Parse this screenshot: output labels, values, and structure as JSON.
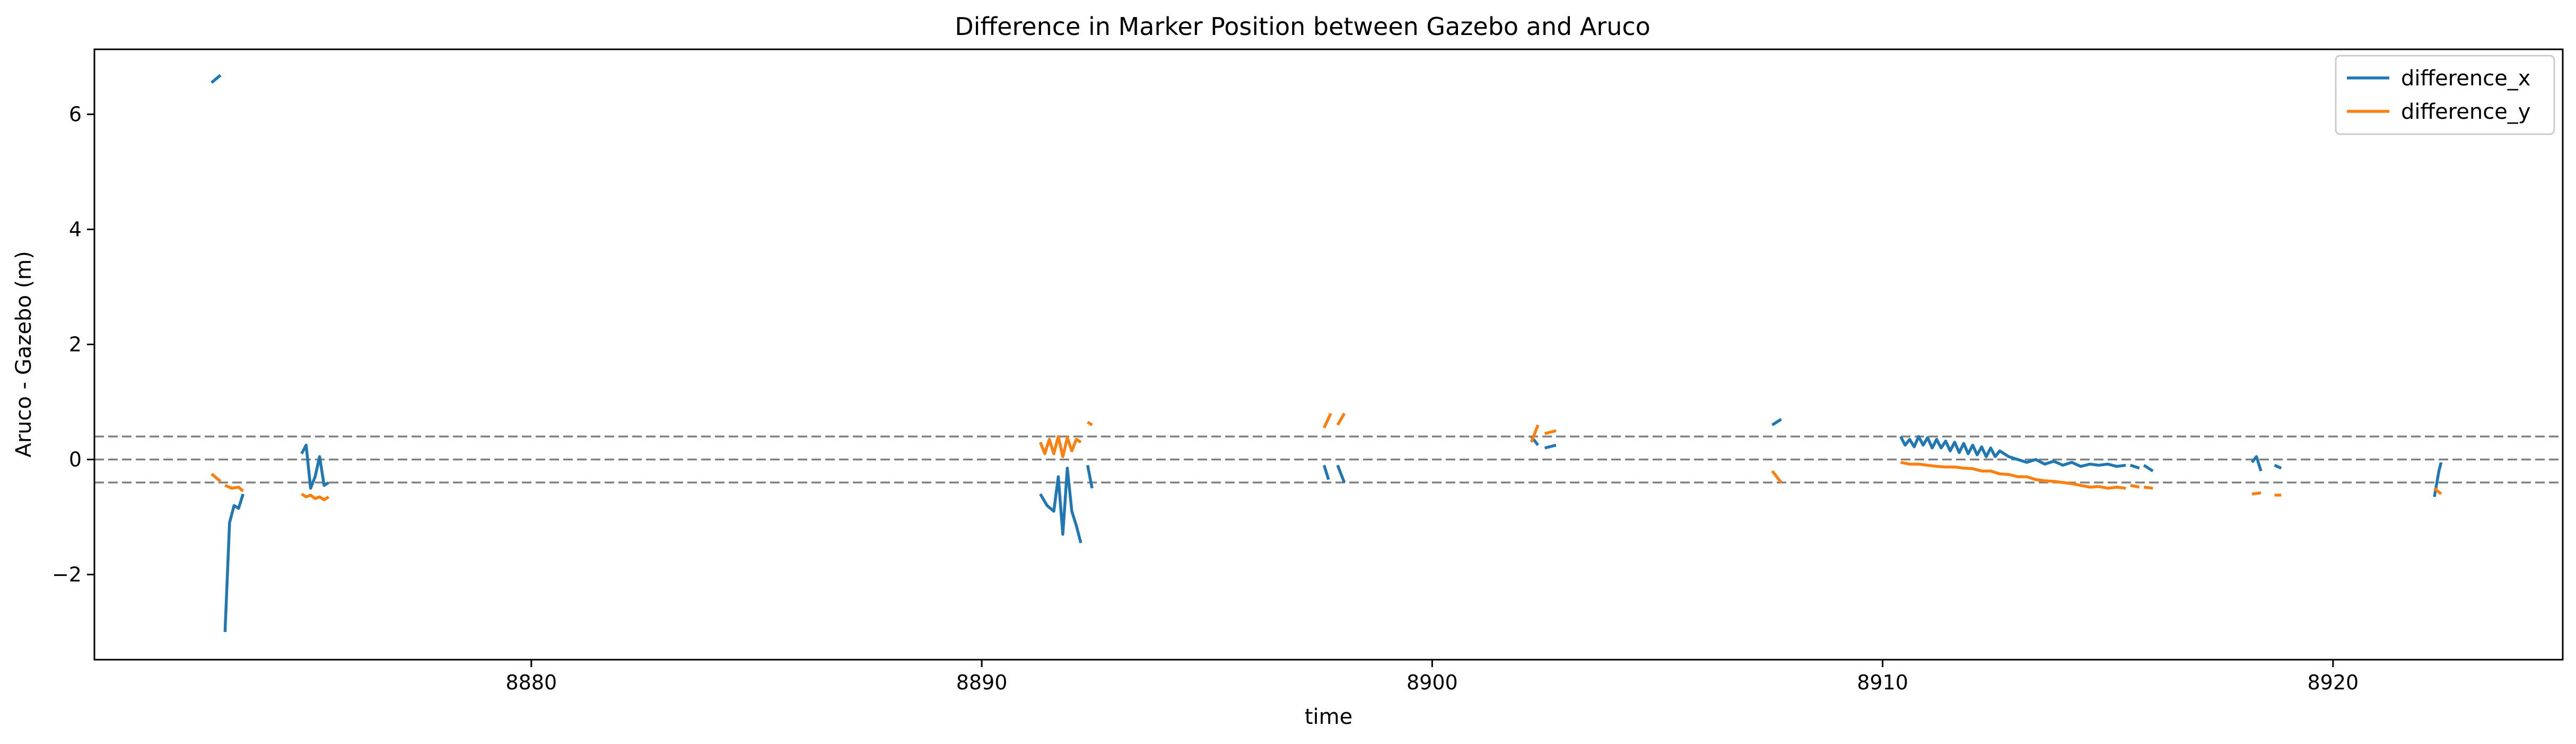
{
  "chart_data": {
    "type": "line",
    "title": "Difference in Marker Position between Gazebo and Aruco",
    "xlabel": "time",
    "ylabel": "Aruco - Gazebo (m)",
    "xlim": [
      8870.3,
      8925.1
    ],
    "ylim": [
      -3.48,
      7.13
    ],
    "xticks": [
      8880,
      8890,
      8900,
      8910,
      8920
    ],
    "yticks": [
      -2,
      0,
      2,
      4,
      6
    ],
    "xtick_labels": [
      "8880",
      "8890",
      "8900",
      "8910",
      "8920"
    ],
    "ytick_labels": [
      "−2",
      "0",
      "2",
      "4",
      "6"
    ],
    "grid": false,
    "legend": {
      "placement": "top-right"
    },
    "reference_lines": [
      {
        "y": 0.4,
        "color": "#808080",
        "style": "dashed"
      },
      {
        "y": 0.0,
        "color": "#808080",
        "style": "dashed"
      },
      {
        "y": -0.4,
        "color": "#808080",
        "style": "dashed"
      }
    ],
    "series": [
      {
        "name": "difference_x",
        "color": "#1f77b4",
        "segments": [
          [
            [
              8872.9,
              6.55
            ],
            [
              8873.1,
              6.68
            ]
          ],
          [
            [
              8873.2,
              -3.0
            ],
            [
              8873.3,
              -1.1
            ],
            [
              8873.4,
              -0.8
            ],
            [
              8873.5,
              -0.85
            ],
            [
              8873.6,
              -0.6
            ]
          ],
          [
            [
              8874.9,
              0.1
            ],
            [
              8875.0,
              0.25
            ],
            [
              8875.1,
              -0.5
            ],
            [
              8875.2,
              -0.3
            ],
            [
              8875.3,
              0.05
            ],
            [
              8875.4,
              -0.45
            ],
            [
              8875.5,
              -0.4
            ]
          ],
          [
            [
              8891.3,
              -0.6
            ],
            [
              8891.45,
              -0.8
            ],
            [
              8891.6,
              -0.9
            ],
            [
              8891.7,
              -0.3
            ],
            [
              8891.8,
              -1.3
            ],
            [
              8891.9,
              -0.15
            ],
            [
              8892.0,
              -0.9
            ],
            [
              8892.1,
              -1.15
            ],
            [
              8892.2,
              -1.45
            ]
          ],
          [
            [
              8892.35,
              -0.1
            ],
            [
              8892.45,
              -0.5
            ]
          ],
          [
            [
              8897.6,
              -0.1
            ],
            [
              8897.7,
              -0.35
            ]
          ],
          [
            [
              8897.9,
              -0.1
            ],
            [
              8898.05,
              -0.4
            ]
          ],
          [
            [
              8902.2,
              0.4
            ],
            [
              8902.35,
              0.25
            ]
          ],
          [
            [
              8902.5,
              0.2
            ],
            [
              8902.75,
              0.25
            ]
          ],
          [
            [
              8907.55,
              0.6
            ],
            [
              8907.75,
              0.7
            ]
          ],
          [
            [
              8910.4,
              0.4
            ],
            [
              8910.5,
              0.25
            ],
            [
              8910.6,
              0.35
            ],
            [
              8910.7,
              0.22
            ],
            [
              8910.8,
              0.4
            ],
            [
              8910.9,
              0.25
            ],
            [
              8911.0,
              0.38
            ],
            [
              8911.1,
              0.2
            ],
            [
              8911.2,
              0.35
            ],
            [
              8911.3,
              0.2
            ],
            [
              8911.4,
              0.32
            ],
            [
              8911.5,
              0.15
            ],
            [
              8911.6,
              0.3
            ],
            [
              8911.7,
              0.12
            ],
            [
              8911.8,
              0.28
            ],
            [
              8911.9,
              0.1
            ],
            [
              8912.0,
              0.25
            ],
            [
              8912.1,
              0.08
            ],
            [
              8912.2,
              0.22
            ],
            [
              8912.3,
              0.05
            ],
            [
              8912.4,
              0.2
            ],
            [
              8912.5,
              0.05
            ],
            [
              8912.6,
              0.15
            ],
            [
              8912.8,
              0.05
            ],
            [
              8913.0,
              0.0
            ],
            [
              8913.2,
              -0.05
            ],
            [
              8913.4,
              0.0
            ],
            [
              8913.6,
              -0.08
            ],
            [
              8913.8,
              -0.03
            ],
            [
              8914.0,
              -0.1
            ],
            [
              8914.2,
              -0.05
            ],
            [
              8914.4,
              -0.12
            ],
            [
              8914.6,
              -0.08
            ],
            [
              8914.8,
              -0.1
            ],
            [
              8915.0,
              -0.08
            ],
            [
              8915.2,
              -0.12
            ],
            [
              8915.4,
              -0.1
            ]
          ],
          [
            [
              8915.5,
              -0.1
            ],
            [
              8915.7,
              -0.15
            ]
          ],
          [
            [
              8915.8,
              -0.1
            ],
            [
              8916.0,
              -0.2
            ]
          ],
          [
            [
              8918.2,
              -0.05
            ],
            [
              8918.3,
              0.05
            ],
            [
              8918.4,
              -0.2
            ]
          ],
          [
            [
              8918.7,
              -0.1
            ],
            [
              8918.85,
              -0.15
            ]
          ],
          [
            [
              8922.25,
              -0.65
            ],
            [
              8922.35,
              -0.2
            ],
            [
              8922.4,
              -0.05
            ]
          ]
        ]
      },
      {
        "name": "difference_y",
        "color": "#ff7f0e",
        "segments": [
          [
            [
              8872.9,
              -0.25
            ],
            [
              8873.1,
              -0.38
            ]
          ],
          [
            [
              8873.2,
              -0.45
            ],
            [
              8873.35,
              -0.5
            ],
            [
              8873.5,
              -0.48
            ],
            [
              8873.6,
              -0.55
            ]
          ],
          [
            [
              8874.9,
              -0.6
            ],
            [
              8875.0,
              -0.65
            ],
            [
              8875.1,
              -0.62
            ],
            [
              8875.2,
              -0.68
            ],
            [
              8875.3,
              -0.65
            ],
            [
              8875.4,
              -0.7
            ],
            [
              8875.5,
              -0.65
            ]
          ],
          [
            [
              8891.3,
              0.3
            ],
            [
              8891.4,
              0.1
            ],
            [
              8891.5,
              0.35
            ],
            [
              8891.6,
              0.1
            ],
            [
              8891.7,
              0.4
            ],
            [
              8891.8,
              0.05
            ],
            [
              8891.9,
              0.38
            ],
            [
              8892.0,
              0.15
            ],
            [
              8892.1,
              0.35
            ],
            [
              8892.2,
              0.3
            ]
          ],
          [
            [
              8892.35,
              0.65
            ],
            [
              8892.45,
              0.6
            ]
          ],
          [
            [
              8897.6,
              0.55
            ],
            [
              8897.75,
              0.8
            ]
          ],
          [
            [
              8897.9,
              0.6
            ],
            [
              8898.05,
              0.8
            ]
          ],
          [
            [
              8902.2,
              0.3
            ],
            [
              8902.35,
              0.6
            ]
          ],
          [
            [
              8902.5,
              0.45
            ],
            [
              8902.75,
              0.5
            ]
          ],
          [
            [
              8907.55,
              -0.2
            ],
            [
              8907.75,
              -0.4
            ]
          ],
          [
            [
              8910.4,
              -0.05
            ],
            [
              8910.6,
              -0.08
            ],
            [
              8910.8,
              -0.08
            ],
            [
              8911.0,
              -0.1
            ],
            [
              8911.2,
              -0.12
            ],
            [
              8911.4,
              -0.13
            ],
            [
              8911.6,
              -0.13
            ],
            [
              8911.8,
              -0.15
            ],
            [
              8912.0,
              -0.16
            ],
            [
              8912.2,
              -0.2
            ],
            [
              8912.4,
              -0.2
            ],
            [
              8912.6,
              -0.25
            ],
            [
              8912.8,
              -0.26
            ],
            [
              8913.0,
              -0.3
            ],
            [
              8913.2,
              -0.3
            ],
            [
              8913.4,
              -0.35
            ],
            [
              8913.6,
              -0.37
            ],
            [
              8913.8,
              -0.38
            ],
            [
              8914.0,
              -0.4
            ],
            [
              8914.2,
              -0.42
            ],
            [
              8914.4,
              -0.45
            ],
            [
              8914.6,
              -0.48
            ],
            [
              8914.8,
              -0.47
            ],
            [
              8915.0,
              -0.5
            ],
            [
              8915.2,
              -0.48
            ],
            [
              8915.4,
              -0.5
            ]
          ],
          [
            [
              8915.5,
              -0.45
            ],
            [
              8915.7,
              -0.48
            ]
          ],
          [
            [
              8915.8,
              -0.48
            ],
            [
              8916.0,
              -0.5
            ]
          ],
          [
            [
              8918.2,
              -0.6
            ],
            [
              8918.4,
              -0.58
            ]
          ],
          [
            [
              8918.7,
              -0.62
            ],
            [
              8918.85,
              -0.62
            ]
          ],
          [
            [
              8922.25,
              -0.5
            ],
            [
              8922.4,
              -0.6
            ]
          ]
        ]
      }
    ]
  }
}
